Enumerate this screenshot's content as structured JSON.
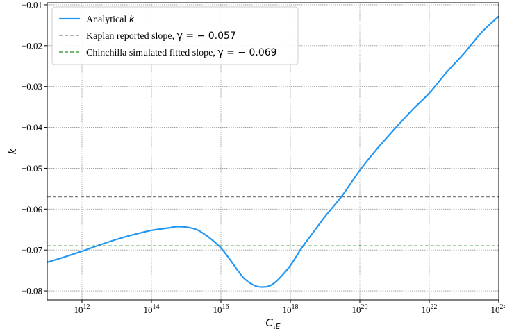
{
  "chart_data": {
    "type": "line",
    "title": "",
    "xlabel": "C_{\\E}",
    "ylabel": "k",
    "x_scale": "log",
    "xlim": [
      100000000000.0,
      1e+24
    ],
    "ylim": [
      -0.0822,
      -0.0095
    ],
    "grid": true,
    "legend_placement": "top-left",
    "x_ticks": [
      1000000000000.0,
      100000000000000.0,
      1e+16,
      1e+18,
      1e+20,
      1e+22,
      1e+24
    ],
    "x_tick_labels": [
      {
        "base": "10",
        "exp": "12"
      },
      {
        "base": "10",
        "exp": "14"
      },
      {
        "base": "10",
        "exp": "16"
      },
      {
        "base": "10",
        "exp": "18"
      },
      {
        "base": "10",
        "exp": "20"
      },
      {
        "base": "10",
        "exp": "22"
      },
      {
        "base": "10",
        "exp": "24"
      }
    ],
    "y_ticks": [
      -0.08,
      -0.07,
      -0.06,
      -0.05,
      -0.04,
      -0.03,
      -0.02,
      -0.01
    ],
    "y_tick_labels": [
      "−0.08",
      "−0.07",
      "−0.06",
      "−0.05",
      "−0.04",
      "−0.03",
      "−0.02",
      "−0.01"
    ],
    "series": [
      {
        "name": "Analytical k",
        "legend_label": "Analytical ",
        "legend_math": "k",
        "color": "#2196f3",
        "style": "solid",
        "x": [
          100000000000.0,
          316000000000.0,
          1000000000000.0,
          3160000000000.0,
          10000000000000.0,
          31600000000000.0,
          100000000000000.0,
          316000000000000.0,
          500000000000000.0,
          1000000000000000.0,
          2000000000000000.0,
          3160000000000000.0,
          5000000000000000.0,
          1e+16,
          2e+16,
          3.16e+16,
          5e+16,
          1e+17,
          2e+17,
          3.16e+17,
          5e+17,
          1e+18,
          2e+18,
          3.16e+18,
          1e+19,
          3.16e+19,
          1e+20,
          3.16e+20,
          1e+21,
          3.16e+21,
          1e+22,
          3.16e+22,
          1e+23,
          3.16e+23,
          1e+24
        ],
        "y": [
          -0.073,
          -0.0717,
          -0.0703,
          -0.0688,
          -0.0674,
          -0.0662,
          -0.0652,
          -0.0646,
          -0.0643,
          -0.0644,
          -0.065,
          -0.066,
          -0.0672,
          -0.0695,
          -0.0728,
          -0.0752,
          -0.0772,
          -0.0788,
          -0.079,
          -0.0783,
          -0.0768,
          -0.0738,
          -0.0698,
          -0.0675,
          -0.0618,
          -0.0566,
          -0.0505,
          -0.0452,
          -0.0404,
          -0.0358,
          -0.0316,
          -0.0265,
          -0.0219,
          -0.0168,
          -0.0128
        ]
      },
      {
        "name": "Kaplan reported slope",
        "legend_label": "Kaplan reported slope, ",
        "legend_math": "γ = − 0.057",
        "color": "#808080",
        "style": "dashed",
        "constant": -0.057
      },
      {
        "name": "Chinchilla simulated fitted slope",
        "legend_label": "Chinchilla simulated fitted slope, ",
        "legend_math": "γ = − 0.069",
        "color": "#228b22",
        "style": "dashed",
        "constant": -0.069
      }
    ]
  }
}
